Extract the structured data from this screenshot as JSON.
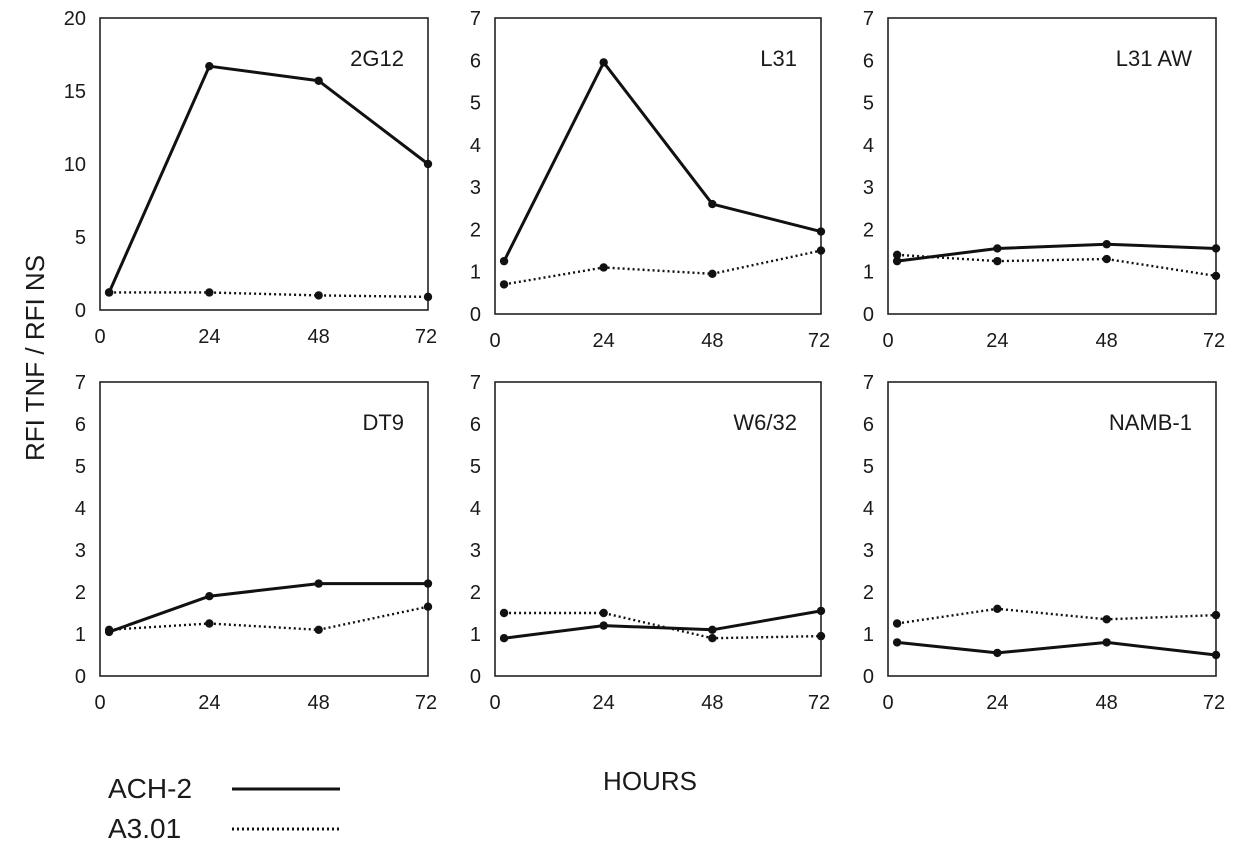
{
  "figure": {
    "ylabel": "RFI TNF / RFI NS",
    "xlabel": "HOURS",
    "legend": [
      {
        "name": "ACH-2",
        "style": "solid"
      },
      {
        "name": "A3.01",
        "style": "dotted"
      }
    ],
    "line_color": "#111111",
    "background": "#ffffff"
  },
  "chart_data": [
    {
      "type": "line",
      "title": "2G12",
      "x": [
        2,
        24,
        48,
        72
      ],
      "xticks": [
        0,
        24,
        48,
        72
      ],
      "xlim": [
        0,
        72
      ],
      "ylim": [
        0,
        20
      ],
      "yticks": [
        0,
        5,
        10,
        15,
        20
      ],
      "series": [
        {
          "name": "ACH-2",
          "values": [
            1.2,
            16.7,
            15.7,
            10.0
          ]
        },
        {
          "name": "A3.01",
          "values": [
            1.2,
            1.2,
            1.0,
            0.9
          ]
        }
      ]
    },
    {
      "type": "line",
      "title": "L31",
      "x": [
        2,
        24,
        48,
        72
      ],
      "xticks": [
        0,
        24,
        48,
        72
      ],
      "xlim": [
        0,
        72
      ],
      "ylim": [
        0,
        7
      ],
      "yticks": [
        0,
        1,
        2,
        3,
        4,
        5,
        6,
        7
      ],
      "series": [
        {
          "name": "ACH-2",
          "values": [
            1.25,
            5.95,
            2.6,
            1.95
          ]
        },
        {
          "name": "A3.01",
          "values": [
            0.7,
            1.1,
            0.95,
            1.5
          ]
        }
      ]
    },
    {
      "type": "line",
      "title": "L31 AW",
      "x": [
        2,
        24,
        48,
        72
      ],
      "xticks": [
        0,
        24,
        48,
        72
      ],
      "xlim": [
        0,
        72
      ],
      "ylim": [
        0,
        7
      ],
      "yticks": [
        0,
        1,
        2,
        3,
        4,
        5,
        6,
        7
      ],
      "series": [
        {
          "name": "ACH-2",
          "values": [
            1.25,
            1.55,
            1.65,
            1.55
          ]
        },
        {
          "name": "A3.01",
          "values": [
            1.4,
            1.25,
            1.3,
            0.9
          ]
        }
      ]
    },
    {
      "type": "line",
      "title": "DT9",
      "x": [
        2,
        24,
        48,
        72
      ],
      "xticks": [
        0,
        24,
        48,
        72
      ],
      "xlim": [
        0,
        72
      ],
      "ylim": [
        0,
        7
      ],
      "yticks": [
        0,
        1,
        2,
        3,
        4,
        5,
        6,
        7
      ],
      "series": [
        {
          "name": "ACH-2",
          "values": [
            1.05,
            1.9,
            2.2,
            2.2
          ]
        },
        {
          "name": "A3.01",
          "values": [
            1.1,
            1.25,
            1.1,
            1.65
          ]
        }
      ]
    },
    {
      "type": "line",
      "title": "W6/32",
      "x": [
        2,
        24,
        48,
        72
      ],
      "xticks": [
        0,
        24,
        48,
        72
      ],
      "xlim": [
        0,
        72
      ],
      "ylim": [
        0,
        7
      ],
      "yticks": [
        0,
        1,
        2,
        3,
        4,
        5,
        6,
        7
      ],
      "series": [
        {
          "name": "ACH-2",
          "values": [
            0.9,
            1.2,
            1.1,
            1.55
          ]
        },
        {
          "name": "A3.01",
          "values": [
            1.5,
            1.5,
            0.9,
            0.95
          ]
        }
      ]
    },
    {
      "type": "line",
      "title": "NAMB-1",
      "x": [
        2,
        24,
        48,
        72
      ],
      "xticks": [
        0,
        24,
        48,
        72
      ],
      "xlim": [
        0,
        72
      ],
      "ylim": [
        0,
        7
      ],
      "yticks": [
        0,
        1,
        2,
        3,
        4,
        5,
        6,
        7
      ],
      "series": [
        {
          "name": "ACH-2",
          "values": [
            0.8,
            0.55,
            0.8,
            0.5
          ]
        },
        {
          "name": "A3.01",
          "values": [
            1.25,
            1.6,
            1.35,
            1.45
          ]
        }
      ]
    }
  ]
}
